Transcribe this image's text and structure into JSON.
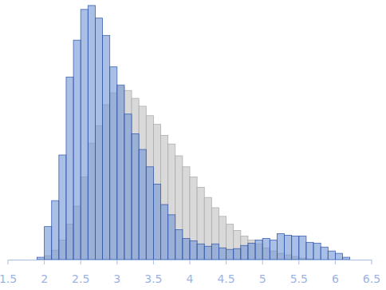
{
  "chart_data": {
    "type": "histogram",
    "bins": [
      1.9,
      2.0,
      2.1,
      2.2,
      2.3,
      2.4,
      2.5,
      2.6,
      2.7,
      2.8,
      2.9,
      3.0,
      3.1,
      3.2,
      3.3,
      3.4,
      3.5,
      3.6,
      3.7,
      3.8,
      3.9,
      4.0,
      4.1,
      4.2,
      4.3,
      4.4,
      4.5,
      4.6,
      4.7,
      4.8,
      4.9,
      5.0,
      5.1,
      5.2,
      5.3,
      5.4,
      5.5,
      5.6,
      5.7,
      5.8,
      5.9,
      6.0,
      6.1,
      6.2
    ],
    "series": [
      {
        "color": "#d9d9d9",
        "values": [
          0,
          5,
          12,
          25,
          45,
          68,
          105,
          148,
          170,
          197,
          212,
          220,
          215,
          205,
          195,
          183,
          172,
          158,
          147,
          132,
          118,
          105,
          92,
          79,
          66,
          55,
          45,
          37,
          30,
          25,
          20,
          15,
          11,
          8,
          6,
          4,
          2,
          1,
          0,
          0,
          0,
          0,
          0
        ]
      },
      {
        "color": "#6f94d6",
        "values": [
          3,
          42,
          75,
          133,
          232,
          279,
          318,
          323,
          307,
          285,
          245,
          222,
          185,
          160,
          140,
          118,
          96,
          70,
          57,
          38,
          27,
          24,
          20,
          17,
          20,
          15,
          13,
          14,
          18,
          21,
          25,
          27,
          25,
          33,
          31,
          30,
          30,
          22,
          21,
          16,
          11,
          8,
          3
        ]
      }
    ],
    "xlim": [
      1.5,
      6.5
    ],
    "xticks": [
      1.5,
      2,
      2.5,
      3,
      3.5,
      4,
      4.5,
      5,
      5.5,
      6,
      6.5
    ],
    "ylim": [
      0,
      330
    ],
    "tick_labels": "x"
  }
}
